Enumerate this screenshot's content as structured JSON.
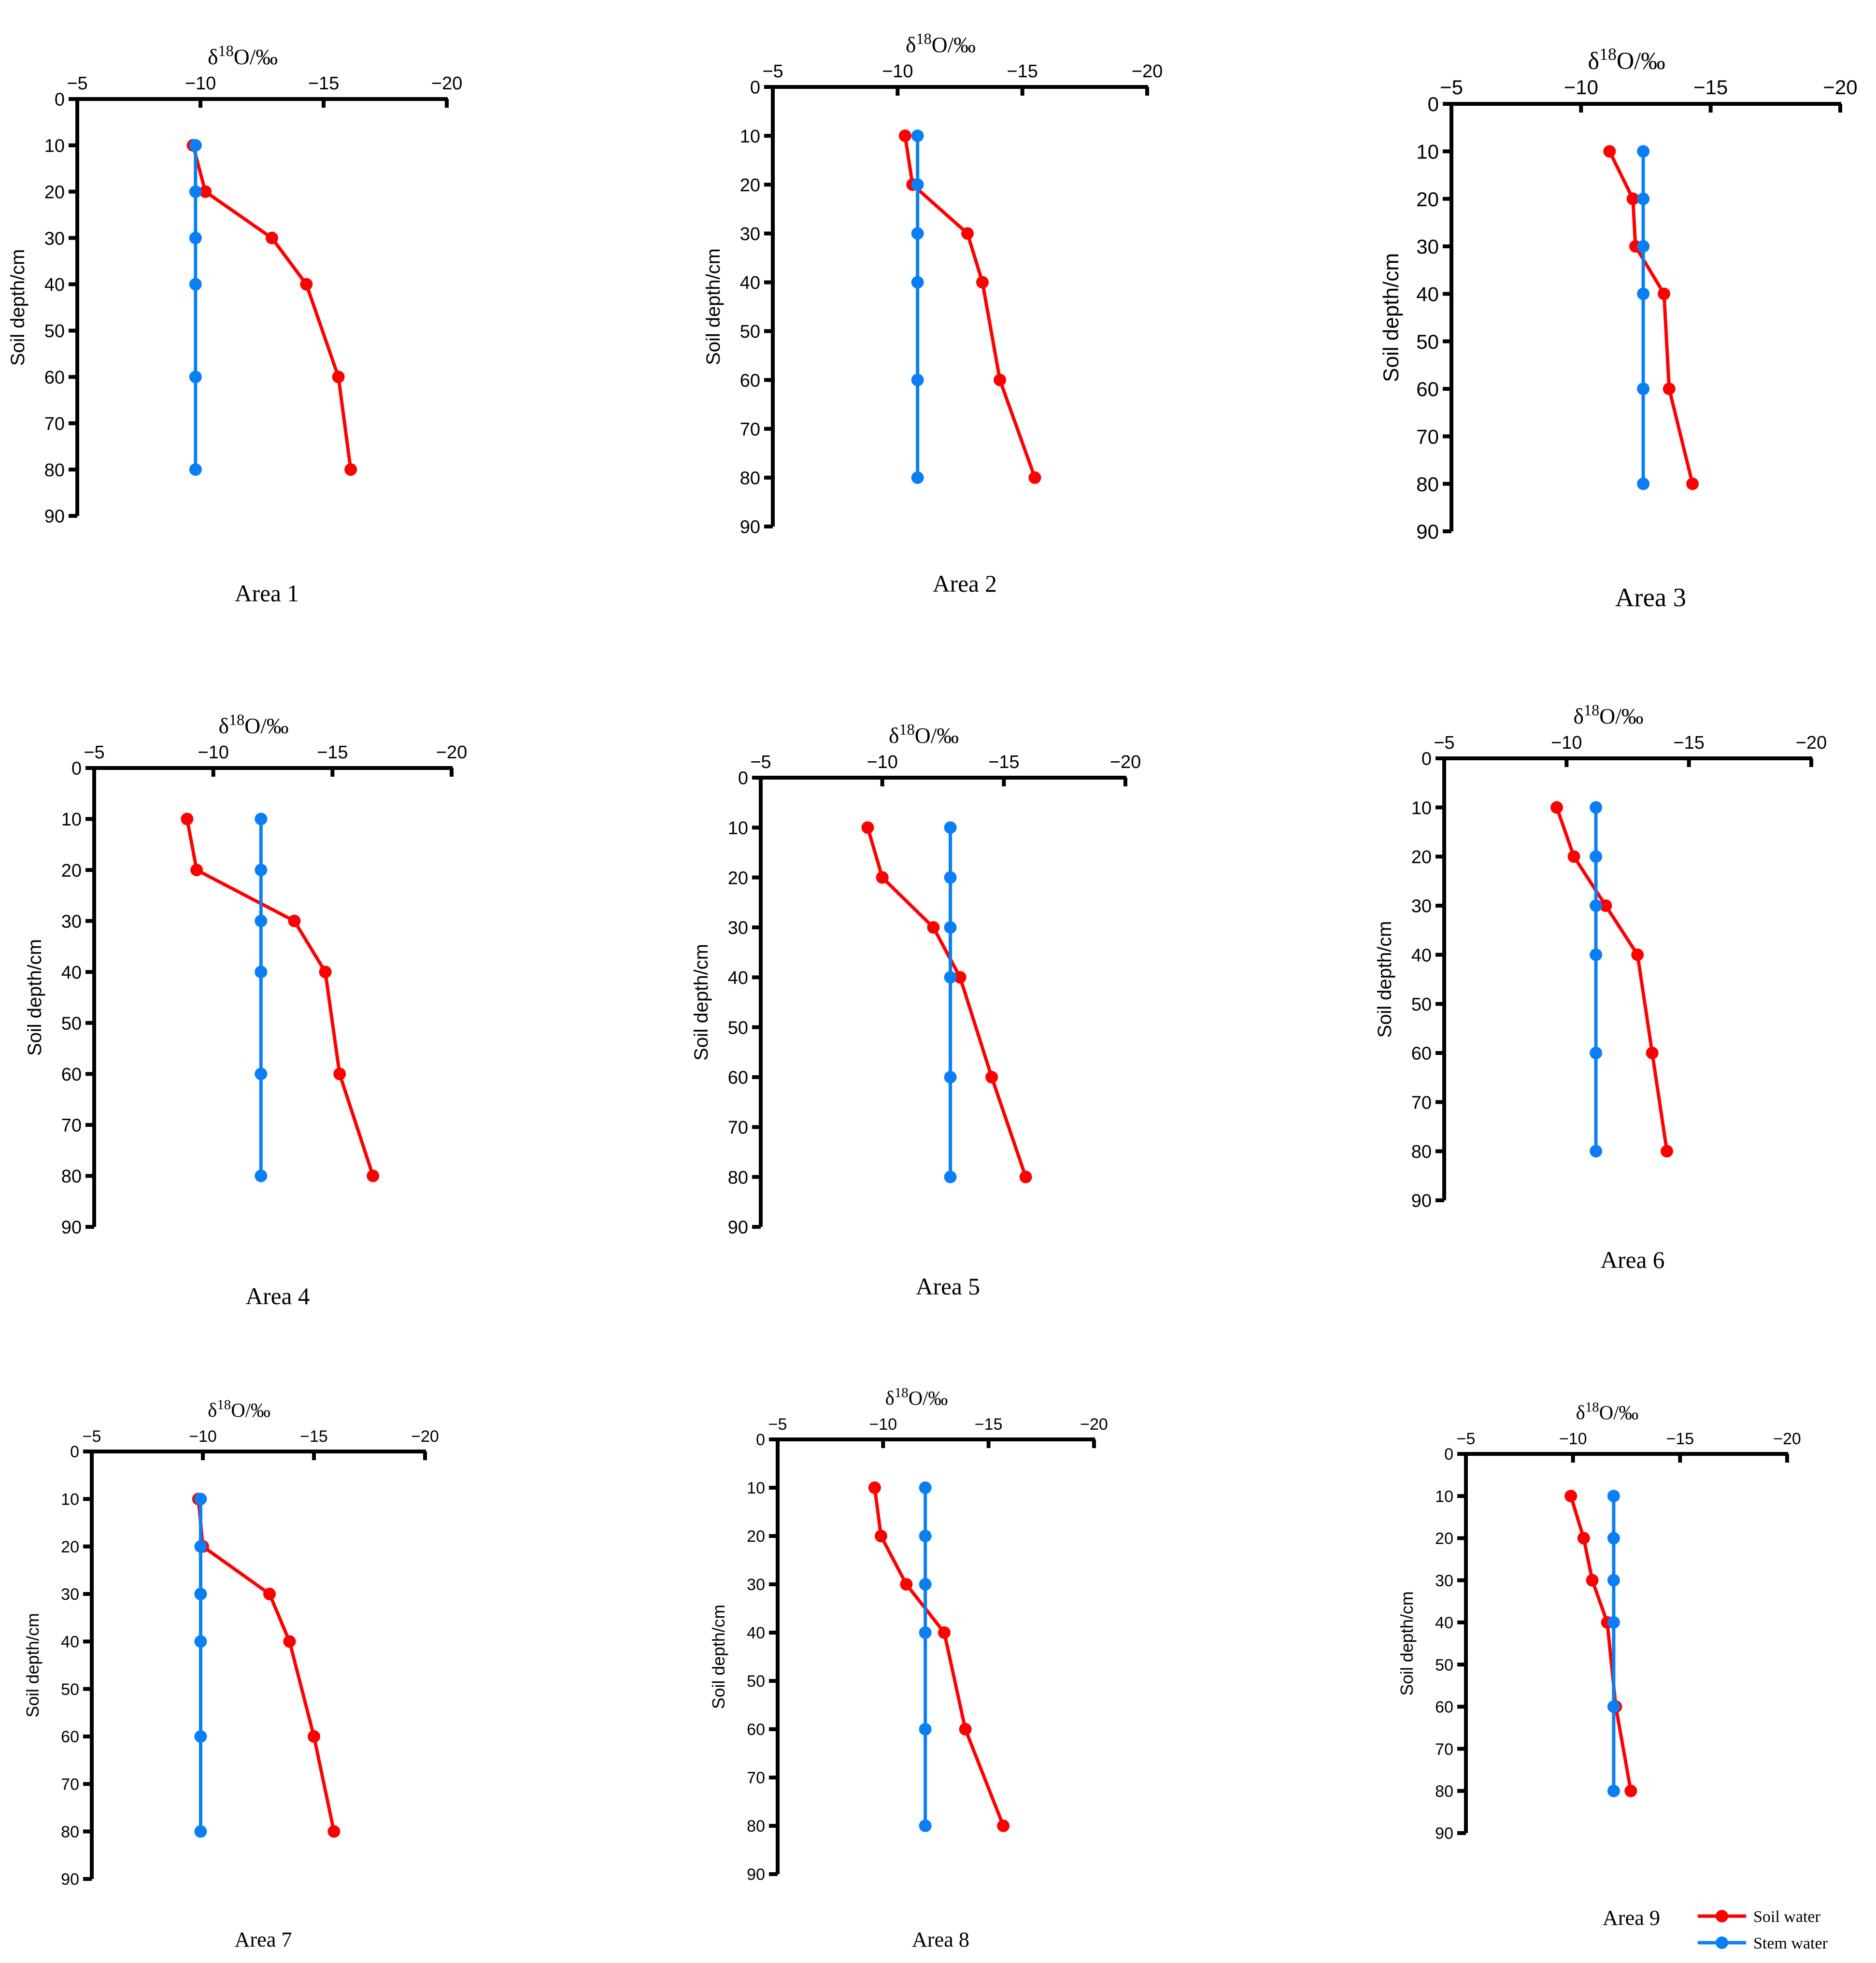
{
  "chart_data": [
    {
      "type": "line",
      "title": "Area 1",
      "xlabel": "δ18O/‰",
      "ylabel": "Soil depth/cm",
      "xlim": [
        -5,
        -20
      ],
      "ylim": [
        0,
        90
      ],
      "xticks": [
        "−5",
        "−10",
        "−15",
        "−20"
      ],
      "yticks": [
        "0",
        "10",
        "20",
        "30",
        "40",
        "50",
        "60",
        "70",
        "80",
        "90"
      ],
      "series": [
        {
          "name": "Soil water",
          "color": "#ff0000",
          "points": [
            [
              -9.7,
              10
            ],
            [
              -10.2,
              20
            ],
            [
              -12.9,
              30
            ],
            [
              -14.3,
              40
            ],
            [
              -15.6,
              60
            ],
            [
              -16.1,
              80
            ]
          ]
        },
        {
          "name": "Stem water",
          "color": "#0a7ff5",
          "points": [
            [
              -9.8,
              10
            ],
            [
              -9.8,
              20
            ],
            [
              -9.8,
              30
            ],
            [
              -9.8,
              40
            ],
            [
              -9.8,
              60
            ],
            [
              -9.8,
              80
            ]
          ]
        }
      ]
    },
    {
      "type": "line",
      "title": "Area 2",
      "xlabel": "δ18O/‰",
      "ylabel": "Soil depth/cm",
      "xlim": [
        -5,
        -20
      ],
      "ylim": [
        0,
        90
      ],
      "xticks": [
        "−5",
        "−10",
        "−15",
        "−20"
      ],
      "yticks": [
        "0",
        "10",
        "20",
        "30",
        "40",
        "50",
        "60",
        "70",
        "80",
        "90"
      ],
      "series": [
        {
          "name": "Soil water",
          "color": "#ff0000",
          "points": [
            [
              -10.3,
              10
            ],
            [
              -10.6,
              20
            ],
            [
              -12.8,
              30
            ],
            [
              -13.4,
              40
            ],
            [
              -14.1,
              60
            ],
            [
              -15.5,
              80
            ]
          ]
        },
        {
          "name": "Stem water",
          "color": "#0a7ff5",
          "points": [
            [
              -10.8,
              10
            ],
            [
              -10.8,
              20
            ],
            [
              -10.8,
              30
            ],
            [
              -10.8,
              40
            ],
            [
              -10.8,
              60
            ],
            [
              -10.8,
              80
            ]
          ]
        }
      ]
    },
    {
      "type": "line",
      "title": "Area 3",
      "xlabel": "δ18O/‰",
      "ylabel": "Soil depth/cm",
      "xlim": [
        -5,
        -20
      ],
      "ylim": [
        0,
        90
      ],
      "xticks": [
        "−5",
        "−10",
        "−15",
        "−20"
      ],
      "yticks": [
        "0",
        "10",
        "20",
        "30",
        "40",
        "50",
        "60",
        "70",
        "80",
        "90"
      ],
      "series": [
        {
          "name": "Soil water",
          "color": "#ff0000",
          "points": [
            [
              -11.1,
              10
            ],
            [
              -12.0,
              20
            ],
            [
              -12.1,
              30
            ],
            [
              -13.2,
              40
            ],
            [
              -13.4,
              60
            ],
            [
              -14.3,
              80
            ]
          ]
        },
        {
          "name": "Stem water",
          "color": "#0a7ff5",
          "points": [
            [
              -12.4,
              10
            ],
            [
              -12.4,
              20
            ],
            [
              -12.4,
              30
            ],
            [
              -12.4,
              40
            ],
            [
              -12.4,
              60
            ],
            [
              -12.4,
              80
            ]
          ]
        }
      ]
    },
    {
      "type": "line",
      "title": "Area 4",
      "xlabel": "δ18O/‰",
      "ylabel": "Soil depth/cm",
      "xlim": [
        -5,
        -20
      ],
      "ylim": [
        0,
        90
      ],
      "xticks": [
        "−5",
        "−10",
        "−15",
        "−20"
      ],
      "yticks": [
        "0",
        "10",
        "20",
        "30",
        "40",
        "50",
        "60",
        "70",
        "80",
        "90"
      ],
      "series": [
        {
          "name": "Soil water",
          "color": "#ff0000",
          "points": [
            [
              -8.9,
              10
            ],
            [
              -9.3,
              20
            ],
            [
              -13.4,
              30
            ],
            [
              -14.7,
              40
            ],
            [
              -15.3,
              60
            ],
            [
              -16.7,
              80
            ]
          ]
        },
        {
          "name": "Stem water",
          "color": "#0a7ff5",
          "points": [
            [
              -12.0,
              10
            ],
            [
              -12.0,
              20
            ],
            [
              -12.0,
              30
            ],
            [
              -12.0,
              40
            ],
            [
              -12.0,
              60
            ],
            [
              -12.0,
              80
            ]
          ]
        }
      ]
    },
    {
      "type": "line",
      "title": "Area 5",
      "xlabel": "δ18O/‰",
      "ylabel": "Soil depth/cm",
      "xlim": [
        -5,
        -20
      ],
      "ylim": [
        0,
        90
      ],
      "xticks": [
        "−5",
        "−10",
        "−15",
        "−20"
      ],
      "yticks": [
        "0",
        "10",
        "20",
        "30",
        "40",
        "50",
        "60",
        "70",
        "80",
        "90"
      ],
      "series": [
        {
          "name": "Soil water",
          "color": "#ff0000",
          "points": [
            [
              -9.4,
              10
            ],
            [
              -10.0,
              20
            ],
            [
              -12.1,
              30
            ],
            [
              -13.2,
              40
            ],
            [
              -14.5,
              60
            ],
            [
              -15.9,
              80
            ]
          ]
        },
        {
          "name": "Stem water",
          "color": "#0a7ff5",
          "points": [
            [
              -12.8,
              10
            ],
            [
              -12.8,
              20
            ],
            [
              -12.8,
              30
            ],
            [
              -12.8,
              40
            ],
            [
              -12.8,
              60
            ],
            [
              -12.8,
              80
            ]
          ]
        }
      ]
    },
    {
      "type": "line",
      "title": "Area 6",
      "xlabel": "δ18O/‰",
      "ylabel": "Soil depth/cm",
      "xlim": [
        -5,
        -20
      ],
      "ylim": [
        0,
        90
      ],
      "xticks": [
        "−5",
        "−10",
        "−15",
        "−20"
      ],
      "yticks": [
        "0",
        "10",
        "20",
        "30",
        "40",
        "50",
        "60",
        "70",
        "80",
        "90"
      ],
      "series": [
        {
          "name": "Soil water",
          "color": "#ff0000",
          "points": [
            [
              -9.6,
              10
            ],
            [
              -10.3,
              20
            ],
            [
              -11.6,
              30
            ],
            [
              -12.9,
              40
            ],
            [
              -13.5,
              60
            ],
            [
              -14.1,
              80
            ]
          ]
        },
        {
          "name": "Stem water",
          "color": "#0a7ff5",
          "points": [
            [
              -11.2,
              10
            ],
            [
              -11.2,
              20
            ],
            [
              -11.2,
              30
            ],
            [
              -11.2,
              40
            ],
            [
              -11.2,
              60
            ],
            [
              -11.2,
              80
            ]
          ]
        }
      ]
    },
    {
      "type": "line",
      "title": "Area 7",
      "xlabel": "δ18O/‰",
      "ylabel": "Soil depth/cm",
      "xlim": [
        -5,
        -20
      ],
      "ylim": [
        0,
        90
      ],
      "xticks": [
        "−5",
        "−10",
        "−15",
        "−20"
      ],
      "yticks": [
        "0",
        "10",
        "20",
        "30",
        "40",
        "50",
        "60",
        "70",
        "80",
        "90"
      ],
      "series": [
        {
          "name": "Soil water",
          "color": "#ff0000",
          "points": [
            [
              -9.8,
              10
            ],
            [
              -10.0,
              20
            ],
            [
              -13.0,
              30
            ],
            [
              -13.9,
              40
            ],
            [
              -15.0,
              60
            ],
            [
              -15.9,
              80
            ]
          ]
        },
        {
          "name": "Stem water",
          "color": "#0a7ff5",
          "points": [
            [
              -9.9,
              10
            ],
            [
              -9.9,
              20
            ],
            [
              -9.9,
              30
            ],
            [
              -9.9,
              40
            ],
            [
              -9.9,
              60
            ],
            [
              -9.9,
              80
            ]
          ]
        }
      ]
    },
    {
      "type": "line",
      "title": "Area 8",
      "xlabel": "δ18O/‰",
      "ylabel": "Soil depth/cm",
      "xlim": [
        -5,
        -20
      ],
      "ylim": [
        0,
        90
      ],
      "xticks": [
        "−5",
        "−10",
        "−15",
        "−20"
      ],
      "yticks": [
        "0",
        "10",
        "20",
        "30",
        "40",
        "50",
        "60",
        "70",
        "80",
        "90"
      ],
      "series": [
        {
          "name": "Soil water",
          "color": "#ff0000",
          "points": [
            [
              -9.6,
              10
            ],
            [
              -9.9,
              20
            ],
            [
              -11.1,
              30
            ],
            [
              -12.9,
              40
            ],
            [
              -13.9,
              60
            ],
            [
              -15.7,
              80
            ]
          ]
        },
        {
          "name": "Stem water",
          "color": "#0a7ff5",
          "points": [
            [
              -12.0,
              10
            ],
            [
              -12.0,
              20
            ],
            [
              -12.0,
              30
            ],
            [
              -12.0,
              40
            ],
            [
              -12.0,
              60
            ],
            [
              -12.0,
              80
            ]
          ]
        }
      ]
    },
    {
      "type": "line",
      "title": "Area 9",
      "xlabel": "δ18O/‰",
      "ylabel": "Soil depth/cm",
      "xlim": [
        -5,
        -20
      ],
      "ylim": [
        0,
        90
      ],
      "xticks": [
        "−5",
        "−10",
        "−15",
        "−20"
      ],
      "yticks": [
        "0",
        "10",
        "20",
        "30",
        "40",
        "50",
        "60",
        "70",
        "80",
        "90"
      ],
      "series": [
        {
          "name": "Soil water",
          "color": "#ff0000",
          "points": [
            [
              -9.9,
              10
            ],
            [
              -10.5,
              20
            ],
            [
              -10.9,
              30
            ],
            [
              -11.6,
              40
            ],
            [
              -12.0,
              60
            ],
            [
              -12.7,
              80
            ]
          ]
        },
        {
          "name": "Stem water",
          "color": "#0a7ff5",
          "points": [
            [
              -11.9,
              10
            ],
            [
              -11.9,
              20
            ],
            [
              -11.9,
              30
            ],
            [
              -11.9,
              40
            ],
            [
              -11.9,
              60
            ],
            [
              -11.9,
              80
            ]
          ]
        }
      ]
    }
  ],
  "legend": {
    "position": "bottom-right",
    "items": [
      {
        "label": "Soil water",
        "color": "#ff0000"
      },
      {
        "label": "Stem water",
        "color": "#0a7ff5"
      }
    ]
  }
}
